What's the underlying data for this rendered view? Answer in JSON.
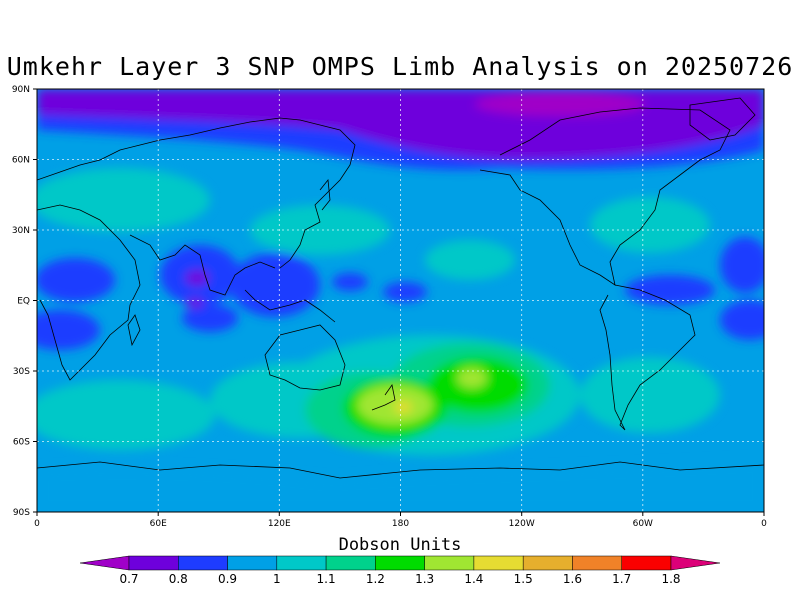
{
  "title": "Umkehr Layer 3 SNP OMPS Limb Analysis on 20250726",
  "map": {
    "lat_labels": [
      "90N",
      "60N",
      "30N",
      "EQ",
      "30S",
      "60S",
      "90S"
    ],
    "lon_labels": [
      "0",
      "60E",
      "120E",
      "180",
      "120W",
      "60W",
      "0"
    ]
  },
  "colorbar": {
    "title": "Dobson Units",
    "levels": [
      "0.7",
      "0.8",
      "0.9",
      "1",
      "1.1",
      "1.2",
      "1.3",
      "1.4",
      "1.5",
      "1.6",
      "1.7",
      "1.8"
    ],
    "colors": [
      "#a000c8",
      "#6e00dc",
      "#1e3cff",
      "#00a0e6",
      "#00c8c8",
      "#00d28c",
      "#00dc00",
      "#a0e632",
      "#e6dc32",
      "#e6af2d",
      "#f08228",
      "#fa0000",
      "#dc0078"
    ]
  }
}
